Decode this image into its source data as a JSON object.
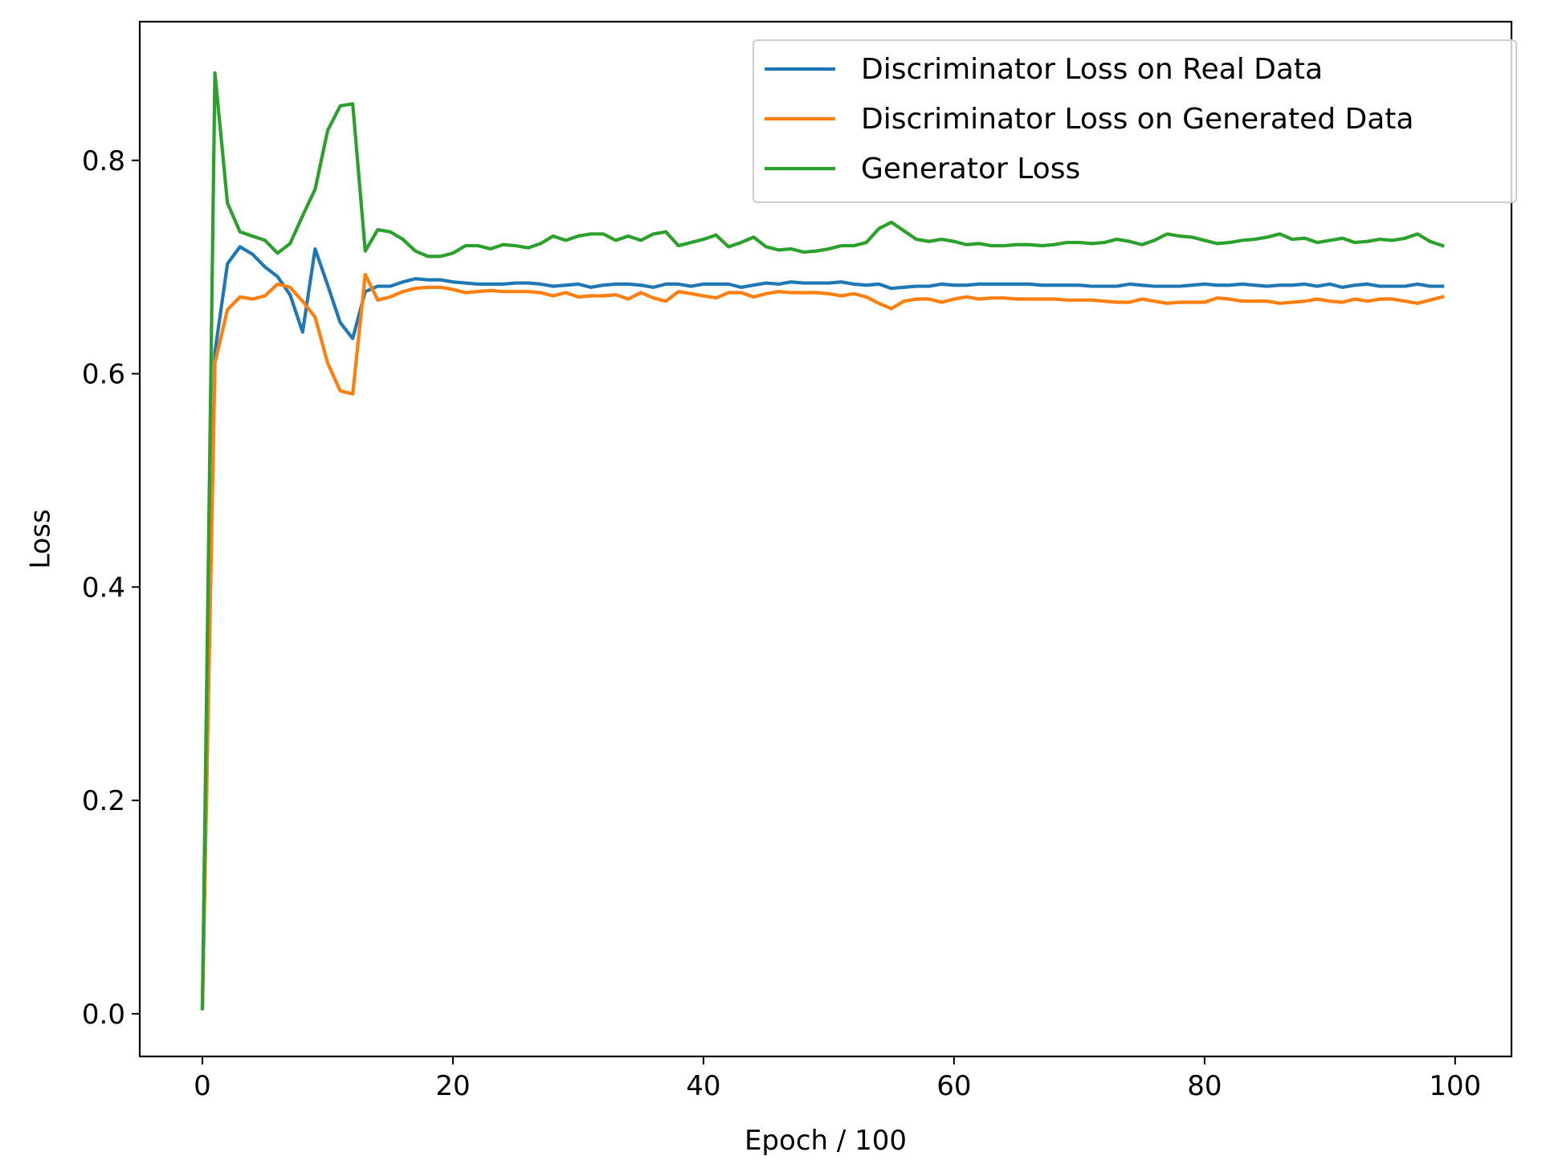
{
  "chart_data": {
    "type": "line",
    "title": "",
    "xlabel": "Epoch / 100",
    "ylabel": "Loss",
    "xlim": [
      -5,
      104.5
    ],
    "ylim": [
      -0.04,
      0.93
    ],
    "xticks": [
      0,
      20,
      40,
      60,
      80,
      100
    ],
    "yticks": [
      0.0,
      0.2,
      0.4,
      0.6,
      0.8
    ],
    "xtick_labels": [
      "0",
      "20",
      "40",
      "60",
      "80",
      "100"
    ],
    "ytick_labels": [
      "0.0",
      "0.2",
      "0.4",
      "0.6",
      "0.8"
    ],
    "grid": false,
    "legend_position": "top-right",
    "x": [
      0,
      1,
      2,
      3,
      4,
      5,
      6,
      7,
      8,
      9,
      10,
      11,
      12,
      13,
      14,
      15,
      16,
      17,
      18,
      19,
      20,
      21,
      22,
      23,
      24,
      25,
      26,
      27,
      28,
      29,
      30,
      31,
      32,
      33,
      34,
      35,
      36,
      37,
      38,
      39,
      40,
      41,
      42,
      43,
      44,
      45,
      46,
      47,
      48,
      49,
      50,
      51,
      52,
      53,
      54,
      55,
      56,
      57,
      58,
      59,
      60,
      61,
      62,
      63,
      64,
      65,
      66,
      67,
      68,
      69,
      70,
      71,
      72,
      73,
      74,
      75,
      76,
      77,
      78,
      79,
      80,
      81,
      82,
      83,
      84,
      85,
      86,
      87,
      88,
      89,
      90,
      91,
      92,
      93,
      94,
      95,
      96,
      97,
      98,
      99
    ],
    "series": [
      {
        "name": "Discriminator Loss on Real Data",
        "color": "#1f77b4",
        "values": [
          0.005,
          0.62,
          0.703,
          0.719,
          0.712,
          0.7,
          0.691,
          0.674,
          0.639,
          0.717,
          0.683,
          0.648,
          0.633,
          0.677,
          0.682,
          0.682,
          0.686,
          0.689,
          0.688,
          0.688,
          0.686,
          0.685,
          0.684,
          0.684,
          0.684,
          0.685,
          0.685,
          0.684,
          0.682,
          0.683,
          0.684,
          0.681,
          0.683,
          0.684,
          0.684,
          0.683,
          0.681,
          0.684,
          0.684,
          0.682,
          0.684,
          0.684,
          0.684,
          0.681,
          0.683,
          0.685,
          0.684,
          0.686,
          0.685,
          0.685,
          0.685,
          0.686,
          0.684,
          0.683,
          0.684,
          0.68,
          0.681,
          0.682,
          0.682,
          0.684,
          0.683,
          0.683,
          0.684,
          0.684,
          0.684,
          0.684,
          0.684,
          0.683,
          0.683,
          0.683,
          0.683,
          0.682,
          0.682,
          0.682,
          0.684,
          0.683,
          0.682,
          0.682,
          0.682,
          0.683,
          0.684,
          0.683,
          0.683,
          0.684,
          0.683,
          0.682,
          0.683,
          0.683,
          0.684,
          0.682,
          0.684,
          0.681,
          0.683,
          0.684,
          0.682,
          0.682,
          0.682,
          0.684,
          0.682,
          0.682
        ]
      },
      {
        "name": "Discriminator Loss on Generated Data",
        "color": "#ff7f0e",
        "values": [
          0.005,
          0.61,
          0.66,
          0.672,
          0.67,
          0.673,
          0.684,
          0.681,
          0.668,
          0.653,
          0.61,
          0.584,
          0.581,
          0.693,
          0.669,
          0.672,
          0.677,
          0.68,
          0.681,
          0.681,
          0.679,
          0.676,
          0.677,
          0.678,
          0.677,
          0.677,
          0.677,
          0.676,
          0.673,
          0.676,
          0.672,
          0.673,
          0.673,
          0.674,
          0.67,
          0.676,
          0.671,
          0.668,
          0.677,
          0.675,
          0.673,
          0.671,
          0.676,
          0.676,
          0.672,
          0.675,
          0.677,
          0.676,
          0.676,
          0.676,
          0.675,
          0.673,
          0.675,
          0.672,
          0.666,
          0.661,
          0.668,
          0.67,
          0.67,
          0.667,
          0.67,
          0.672,
          0.67,
          0.671,
          0.671,
          0.67,
          0.67,
          0.67,
          0.67,
          0.669,
          0.669,
          0.669,
          0.668,
          0.667,
          0.667,
          0.67,
          0.668,
          0.666,
          0.667,
          0.667,
          0.667,
          0.671,
          0.67,
          0.668,
          0.668,
          0.668,
          0.666,
          0.667,
          0.668,
          0.67,
          0.668,
          0.667,
          0.67,
          0.668,
          0.67,
          0.67,
          0.668,
          0.666,
          0.669,
          0.672
        ]
      },
      {
        "name": "Generator Loss",
        "color": "#2ca02c",
        "values": [
          0.005,
          0.882,
          0.76,
          0.733,
          0.729,
          0.725,
          0.713,
          0.722,
          0.748,
          0.773,
          0.828,
          0.851,
          0.853,
          0.715,
          0.735,
          0.733,
          0.726,
          0.715,
          0.71,
          0.71,
          0.713,
          0.72,
          0.72,
          0.717,
          0.721,
          0.72,
          0.718,
          0.722,
          0.729,
          0.725,
          0.729,
          0.731,
          0.731,
          0.725,
          0.729,
          0.725,
          0.731,
          0.733,
          0.72,
          0.723,
          0.726,
          0.73,
          0.719,
          0.723,
          0.728,
          0.719,
          0.716,
          0.717,
          0.714,
          0.715,
          0.717,
          0.72,
          0.72,
          0.723,
          0.736,
          0.742,
          0.734,
          0.726,
          0.724,
          0.726,
          0.724,
          0.721,
          0.722,
          0.72,
          0.72,
          0.721,
          0.721,
          0.72,
          0.721,
          0.723,
          0.723,
          0.722,
          0.723,
          0.726,
          0.724,
          0.721,
          0.725,
          0.731,
          0.729,
          0.728,
          0.725,
          0.722,
          0.723,
          0.725,
          0.726,
          0.728,
          0.731,
          0.726,
          0.727,
          0.723,
          0.725,
          0.727,
          0.723,
          0.724,
          0.726,
          0.725,
          0.727,
          0.731,
          0.724,
          0.72
        ]
      }
    ]
  }
}
